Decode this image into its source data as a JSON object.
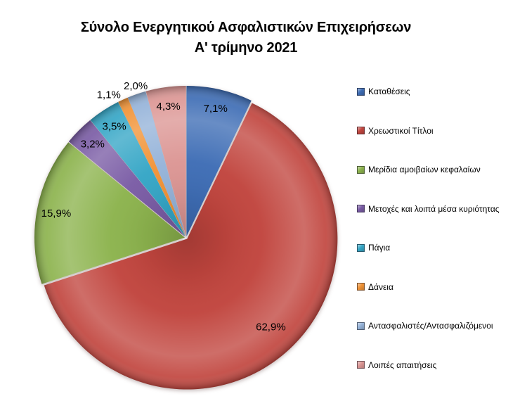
{
  "chart_data": {
    "type": "pie",
    "title": "Σύνολο Ενεργητικού Ασφαλιστικών Επιχειρήσεων",
    "subtitle": "Α' τρίμηνο 2021",
    "direction": "clockwise",
    "start_angle_deg": 0,
    "legend_position": "right",
    "data_label_format": "percent with Greek comma decimal; slices ≤ 2% labeled outside the pie",
    "slices": [
      {
        "label": "Καταθέσεις",
        "pct": 7.1,
        "pct_display": "7,1%",
        "color": "#3E6DB5"
      },
      {
        "label": "Χρεωστικοί Τίτλοι",
        "pct": 62.9,
        "pct_display": "62,9%",
        "color": "#C1453E"
      },
      {
        "label": "Μερίδια αμοιβαίων κεφαλαίων",
        "pct": 15.9,
        "pct_display": "15,9%",
        "color": "#8CB34D"
      },
      {
        "label": "Μετοχές και λοιπά μέσα κυριότητας",
        "pct": 3.2,
        "pct_display": "3,2%",
        "color": "#7A5CA5"
      },
      {
        "label": "Πάγια",
        "pct": 3.5,
        "pct_display": "3,5%",
        "color": "#35A6C6"
      },
      {
        "label": "Δάνεια",
        "pct": 1.1,
        "pct_display": "1,1%",
        "color": "#F19336"
      },
      {
        "label": "Αντασφαλιστές/Αντασφαλιζόμενοι",
        "pct": 2.0,
        "pct_display": "2,0%",
        "color": "#95B3D9"
      },
      {
        "label": "Λοιπές απαιτήσεις",
        "pct": 4.3,
        "pct_display": "4,3%",
        "color": "#DC9694"
      }
    ]
  }
}
